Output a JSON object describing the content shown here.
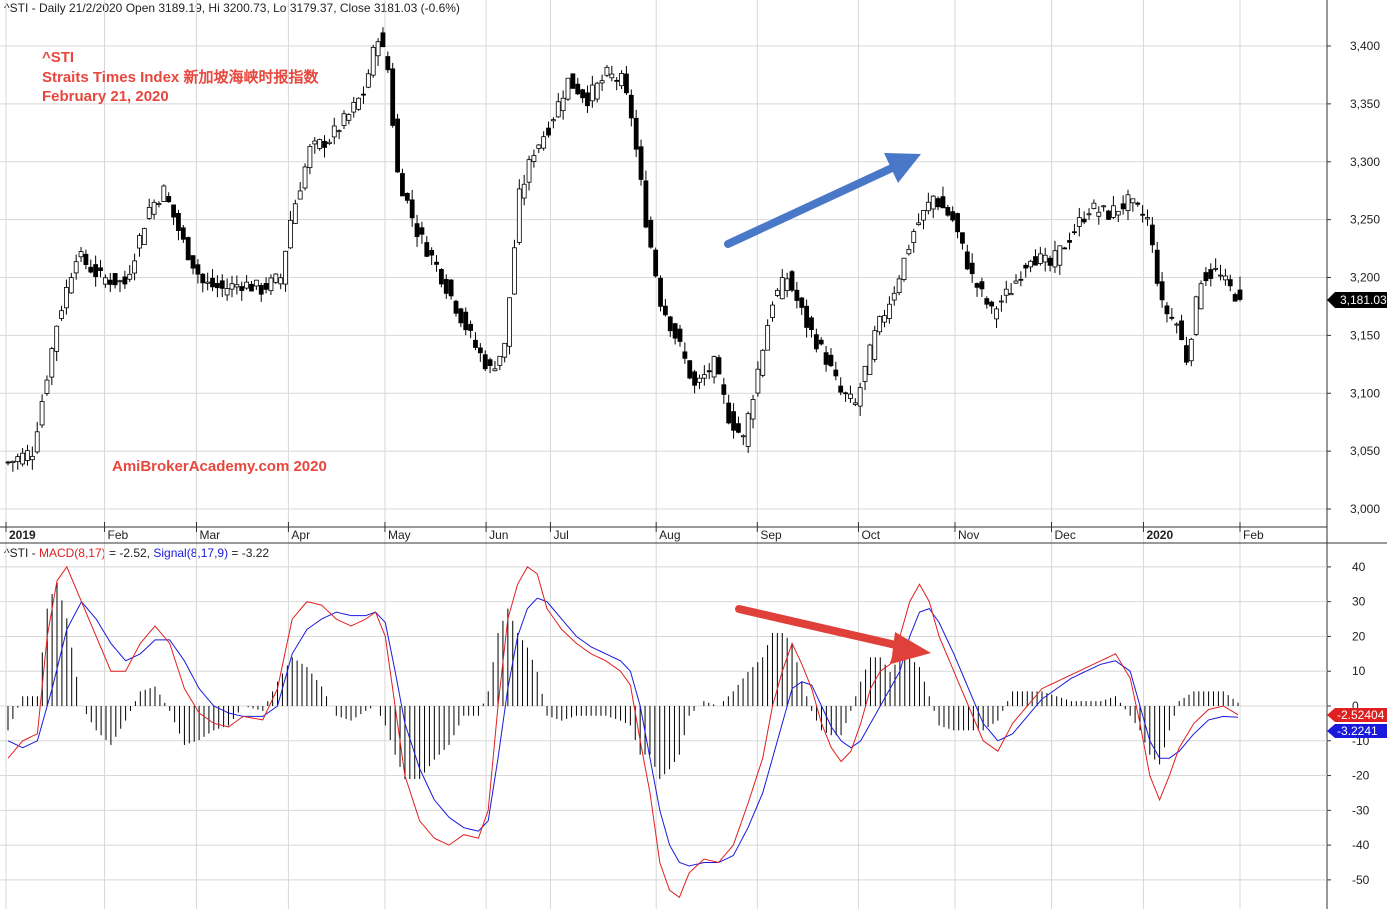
{
  "header": {
    "price_info": "^STI - Daily 21/2/2020 Open 3189.19, Hi 3200.73, Lo 3179.37, Close 3181.03 (-0.6%)",
    "macd_prefix": "^STI - ",
    "macd_label": "MACD(8,17)",
    "macd_value": " = -2.52, ",
    "signal_label": "Signal(8,17,9)",
    "signal_value": " = -3.22"
  },
  "annotations": {
    "ticker": "^STI",
    "index_name": "Straits Times Index   新加坡海峡时报指数",
    "date": "February 21, 2020",
    "watermark": "AmiBrokerAcademy.com   2020"
  },
  "badges": {
    "price_last": "3,181.03",
    "macd_last": "-2.52404",
    "signal_last": "-3.2241"
  },
  "colors": {
    "macd": "#e02020",
    "signal": "#1a1adc",
    "annotation": "#e8473e",
    "arrow_price": "#4a78c8",
    "arrow_macd": "#e0403a",
    "grid": "#d8d8d8"
  },
  "chart_data": [
    {
      "type": "candlestick",
      "title": "^STI",
      "y_ticks": [
        "3,000",
        "3,050",
        "3,100",
        "3,150",
        "3,200",
        "3,250",
        "3,300",
        "3,350",
        "3,400"
      ],
      "y_tick_values": [
        3000,
        3050,
        3100,
        3150,
        3200,
        3250,
        3300,
        3350,
        3400
      ],
      "ylim": [
        2988,
        3425
      ],
      "x_labels": [
        "2019",
        "Feb",
        "Mar",
        "Apr",
        "May",
        "Jun",
        "Jul",
        "Aug",
        "Sep",
        "Oct",
        "Nov",
        "Dec",
        "2020",
        "Feb"
      ],
      "x_label_bold": [
        true,
        false,
        false,
        false,
        false,
        false,
        false,
        false,
        false,
        false,
        false,
        false,
        true,
        false
      ],
      "close_anchors": [
        [
          0,
          3040
        ],
        [
          5,
          3050
        ],
        [
          10,
          3160
        ],
        [
          14,
          3220
        ],
        [
          19,
          3200
        ],
        [
          24,
          3195
        ],
        [
          29,
          3260
        ],
        [
          32,
          3275
        ],
        [
          36,
          3230
        ],
        [
          40,
          3195
        ],
        [
          44,
          3190
        ],
        [
          48,
          3195
        ],
        [
          52,
          3190
        ],
        [
          56,
          3200
        ],
        [
          58,
          3250
        ],
        [
          62,
          3310
        ],
        [
          66,
          3320
        ],
        [
          70,
          3340
        ],
        [
          73,
          3360
        ],
        [
          76,
          3410
        ],
        [
          78,
          3380
        ],
        [
          80,
          3290
        ],
        [
          84,
          3240
        ],
        [
          88,
          3210
        ],
        [
          92,
          3175
        ],
        [
          96,
          3140
        ],
        [
          99,
          3120
        ],
        [
          102,
          3140
        ],
        [
          105,
          3270
        ],
        [
          108,
          3310
        ],
        [
          111,
          3330
        ],
        [
          115,
          3370
        ],
        [
          119,
          3355
        ],
        [
          123,
          3375
        ],
        [
          126,
          3370
        ],
        [
          128,
          3340
        ],
        [
          131,
          3250
        ],
        [
          134,
          3180
        ],
        [
          138,
          3140
        ],
        [
          141,
          3105
        ],
        [
          145,
          3125
        ],
        [
          148,
          3080
        ],
        [
          151,
          3060
        ],
        [
          154,
          3120
        ],
        [
          157,
          3180
        ],
        [
          160,
          3200
        ],
        [
          164,
          3160
        ],
        [
          168,
          3130
        ],
        [
          171,
          3100
        ],
        [
          174,
          3090
        ],
        [
          178,
          3150
        ],
        [
          182,
          3190
        ],
        [
          186,
          3240
        ],
        [
          190,
          3270
        ],
        [
          194,
          3250
        ],
        [
          198,
          3200
        ],
        [
          202,
          3170
        ],
        [
          206,
          3190
        ],
        [
          210,
          3220
        ],
        [
          214,
          3210
        ],
        [
          218,
          3235
        ],
        [
          222,
          3260
        ],
        [
          226,
          3255
        ],
        [
          230,
          3265
        ],
        [
          234,
          3250
        ],
        [
          237,
          3175
        ],
        [
          240,
          3160
        ],
        [
          242,
          3130
        ],
        [
          245,
          3200
        ],
        [
          248,
          3205
        ],
        [
          251,
          3190
        ],
        [
          253,
          3181.03
        ]
      ],
      "last_ohlc": {
        "open": 3189.19,
        "high": 3200.73,
        "low": 3179.37,
        "close": 3181.03
      }
    },
    {
      "type": "line",
      "title": "MACD(8,17) / Signal(8,17,9)",
      "y_ticks": [
        "40",
        "30",
        "20",
        "10",
        "0",
        "-10",
        "-20",
        "-30",
        "-40",
        "-50"
      ],
      "y_tick_values": [
        40,
        30,
        20,
        10,
        0,
        -10,
        -20,
        -30,
        -40,
        -50
      ],
      "ylim": [
        -58,
        44
      ],
      "macd_anchors": [
        [
          0,
          -15
        ],
        [
          3,
          -10
        ],
        [
          6,
          -8
        ],
        [
          8,
          20
        ],
        [
          10,
          36
        ],
        [
          12,
          40
        ],
        [
          15,
          30
        ],
        [
          18,
          20
        ],
        [
          21,
          10
        ],
        [
          24,
          10
        ],
        [
          27,
          18
        ],
        [
          30,
          23
        ],
        [
          33,
          18
        ],
        [
          36,
          5
        ],
        [
          39,
          -2
        ],
        [
          42,
          -5
        ],
        [
          45,
          -6
        ],
        [
          48,
          -3
        ],
        [
          52,
          -4
        ],
        [
          55,
          5
        ],
        [
          58,
          25
        ],
        [
          61,
          30
        ],
        [
          64,
          29
        ],
        [
          67,
          25
        ],
        [
          70,
          23
        ],
        [
          73,
          25
        ],
        [
          75,
          27
        ],
        [
          77,
          20
        ],
        [
          79,
          0
        ],
        [
          81,
          -20
        ],
        [
          84,
          -33
        ],
        [
          87,
          -38
        ],
        [
          90,
          -40
        ],
        [
          93,
          -37
        ],
        [
          96,
          -38
        ],
        [
          98,
          -30
        ],
        [
          100,
          0
        ],
        [
          102,
          25
        ],
        [
          104,
          35
        ],
        [
          106,
          40
        ],
        [
          108,
          38
        ],
        [
          110,
          28
        ],
        [
          113,
          22
        ],
        [
          116,
          18
        ],
        [
          119,
          15
        ],
        [
          122,
          13
        ],
        [
          125,
          10
        ],
        [
          127,
          6
        ],
        [
          129,
          -10
        ],
        [
          131,
          -25
        ],
        [
          133,
          -45
        ],
        [
          135,
          -53
        ],
        [
          137,
          -55
        ],
        [
          139,
          -48
        ],
        [
          142,
          -44
        ],
        [
          145,
          -45
        ],
        [
          148,
          -40
        ],
        [
          151,
          -28
        ],
        [
          154,
          -15
        ],
        [
          156,
          0
        ],
        [
          158,
          10
        ],
        [
          160,
          18
        ],
        [
          162,
          12
        ],
        [
          164,
          5
        ],
        [
          166,
          -5
        ],
        [
          168,
          -12
        ],
        [
          170,
          -16
        ],
        [
          172,
          -13
        ],
        [
          174,
          -5
        ],
        [
          176,
          5
        ],
        [
          178,
          10
        ],
        [
          180,
          12
        ],
        [
          182,
          20
        ],
        [
          184,
          30
        ],
        [
          186,
          35
        ],
        [
          188,
          30
        ],
        [
          190,
          20
        ],
        [
          193,
          10
        ],
        [
          196,
          0
        ],
        [
          199,
          -10
        ],
        [
          202,
          -13
        ],
        [
          205,
          -5
        ],
        [
          208,
          0
        ],
        [
          211,
          5
        ],
        [
          214,
          7
        ],
        [
          217,
          9
        ],
        [
          220,
          11
        ],
        [
          223,
          13
        ],
        [
          226,
          15
        ],
        [
          229,
          8
        ],
        [
          231,
          -5
        ],
        [
          233,
          -20
        ],
        [
          235,
          -27
        ],
        [
          237,
          -20
        ],
        [
          239,
          -12
        ],
        [
          242,
          -5
        ],
        [
          245,
          -1
        ],
        [
          248,
          0
        ],
        [
          251,
          -2.52
        ]
      ],
      "signal_anchors": [
        [
          0,
          -10
        ],
        [
          3,
          -12
        ],
        [
          6,
          -10
        ],
        [
          9,
          5
        ],
        [
          12,
          22
        ],
        [
          15,
          30
        ],
        [
          18,
          25
        ],
        [
          21,
          18
        ],
        [
          24,
          13
        ],
        [
          27,
          15
        ],
        [
          30,
          19
        ],
        [
          33,
          19
        ],
        [
          36,
          13
        ],
        [
          39,
          5
        ],
        [
          42,
          0
        ],
        [
          45,
          -2
        ],
        [
          48,
          -3
        ],
        [
          52,
          -3
        ],
        [
          55,
          0
        ],
        [
          58,
          15
        ],
        [
          61,
          22
        ],
        [
          64,
          25
        ],
        [
          67,
          27
        ],
        [
          70,
          26
        ],
        [
          73,
          26
        ],
        [
          75,
          27
        ],
        [
          77,
          24
        ],
        [
          79,
          10
        ],
        [
          81,
          -5
        ],
        [
          84,
          -18
        ],
        [
          87,
          -27
        ],
        [
          90,
          -32
        ],
        [
          93,
          -35
        ],
        [
          96,
          -36
        ],
        [
          98,
          -33
        ],
        [
          100,
          -15
        ],
        [
          102,
          5
        ],
        [
          104,
          20
        ],
        [
          106,
          28
        ],
        [
          108,
          31
        ],
        [
          110,
          30
        ],
        [
          113,
          25
        ],
        [
          116,
          20
        ],
        [
          119,
          17
        ],
        [
          122,
          15
        ],
        [
          125,
          13
        ],
        [
          127,
          10
        ],
        [
          129,
          0
        ],
        [
          131,
          -15
        ],
        [
          133,
          -30
        ],
        [
          135,
          -40
        ],
        [
          137,
          -45
        ],
        [
          139,
          -46
        ],
        [
          142,
          -45
        ],
        [
          145,
          -45
        ],
        [
          148,
          -43
        ],
        [
          151,
          -35
        ],
        [
          154,
          -25
        ],
        [
          156,
          -15
        ],
        [
          158,
          -5
        ],
        [
          160,
          5
        ],
        [
          162,
          7
        ],
        [
          164,
          6
        ],
        [
          166,
          0
        ],
        [
          168,
          -6
        ],
        [
          170,
          -10
        ],
        [
          172,
          -12
        ],
        [
          174,
          -10
        ],
        [
          176,
          -5
        ],
        [
          178,
          0
        ],
        [
          180,
          5
        ],
        [
          182,
          10
        ],
        [
          184,
          20
        ],
        [
          186,
          27
        ],
        [
          188,
          28
        ],
        [
          190,
          24
        ],
        [
          193,
          15
        ],
        [
          196,
          5
        ],
        [
          199,
          -5
        ],
        [
          202,
          -10
        ],
        [
          205,
          -8
        ],
        [
          208,
          -3
        ],
        [
          211,
          2
        ],
        [
          214,
          5
        ],
        [
          217,
          8
        ],
        [
          220,
          10
        ],
        [
          223,
          12
        ],
        [
          226,
          13
        ],
        [
          229,
          10
        ],
        [
          231,
          0
        ],
        [
          233,
          -10
        ],
        [
          235,
          -15
        ],
        [
          237,
          -15
        ],
        [
          239,
          -13
        ],
        [
          242,
          -8
        ],
        [
          245,
          -4
        ],
        [
          248,
          -3
        ],
        [
          251,
          -3.22
        ]
      ]
    }
  ]
}
